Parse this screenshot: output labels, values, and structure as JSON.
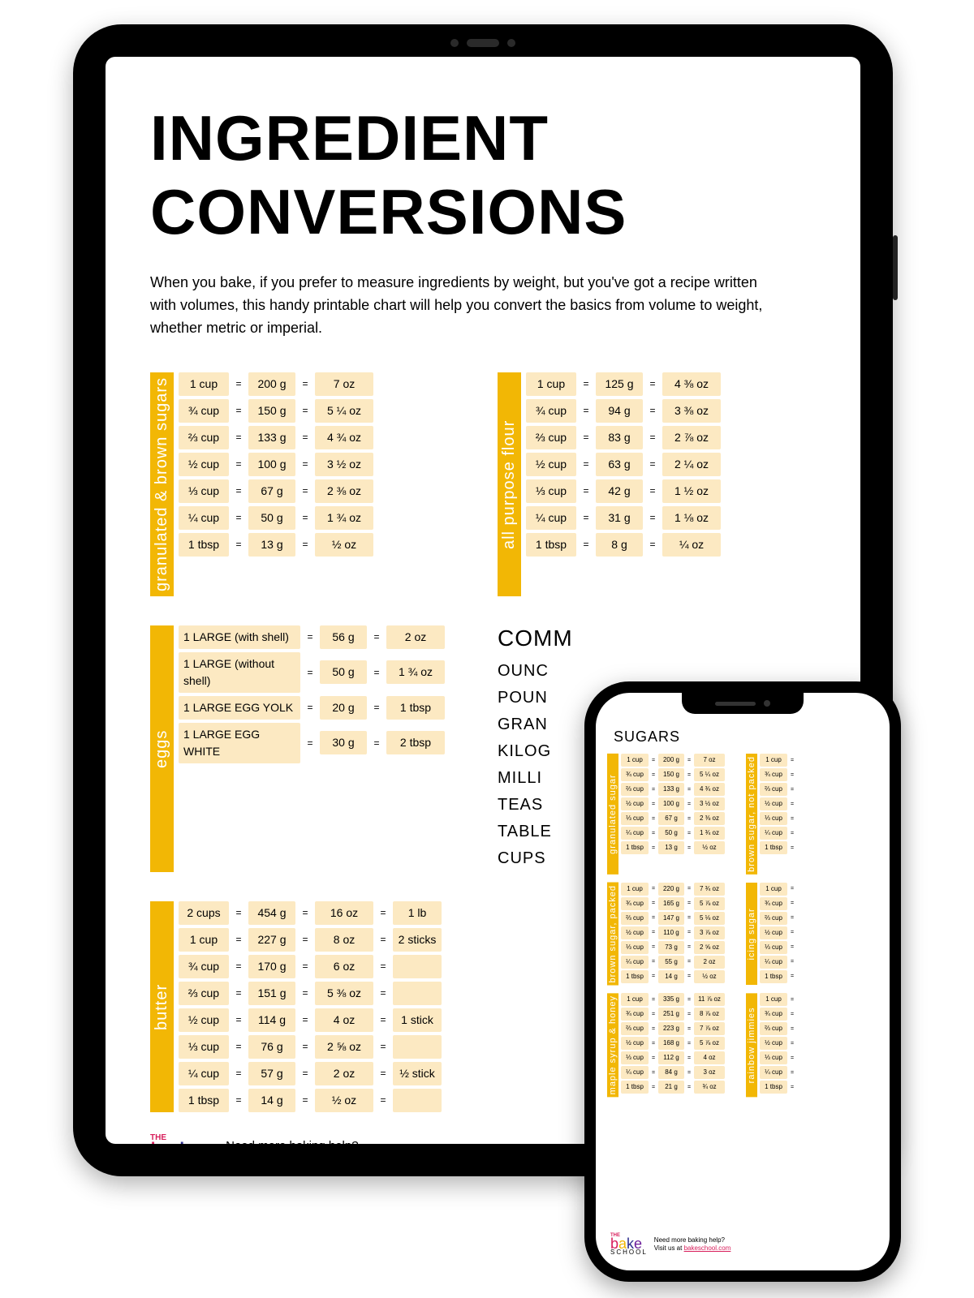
{
  "title": "INGREDIENT CONVERSIONS",
  "intro": "When you bake, if you prefer to measure ingredients by weight, but you've got a recipe written with volumes, this handy printable chart will help you convert the basics from volume to weight, whether metric or imperial.",
  "colors": {
    "accent": "#f2b705",
    "cell": "#fce9c2",
    "pink": "#d81e5b",
    "navy": "#2e2e8f",
    "purple": "#6a1b9a"
  },
  "tables": {
    "sugars": {
      "label": "granulated & brown sugars",
      "rows": [
        [
          "1 cup",
          "200 g",
          "7 oz"
        ],
        [
          "¾ cup",
          "150 g",
          "5 ¼ oz"
        ],
        [
          "⅔ cup",
          "133 g",
          "4 ¾ oz"
        ],
        [
          "½ cup",
          "100 g",
          "3 ½ oz"
        ],
        [
          "⅓ cup",
          "67 g",
          "2 ⅜ oz"
        ],
        [
          "¼ cup",
          "50 g",
          "1 ¾ oz"
        ],
        [
          "1 tbsp",
          "13 g",
          "½ oz"
        ]
      ]
    },
    "flour": {
      "label": "all purpose flour",
      "rows": [
        [
          "1 cup",
          "125 g",
          "4 ⅜ oz"
        ],
        [
          "¾ cup",
          "94 g",
          "3 ⅜ oz"
        ],
        [
          "⅔ cup",
          "83 g",
          "2 ⅞ oz"
        ],
        [
          "½ cup",
          "63 g",
          "2 ¼ oz"
        ],
        [
          "⅓ cup",
          "42 g",
          "1 ½ oz"
        ],
        [
          "¼ cup",
          "31 g",
          "1 ⅛ oz"
        ],
        [
          "1 tbsp",
          "8 g",
          "¼ oz"
        ]
      ]
    },
    "eggs": {
      "label": "eggs",
      "rows": [
        [
          "1 LARGE (with shell)",
          "56 g",
          "2 oz"
        ],
        [
          "1 LARGE (without shell)",
          "50 g",
          "1 ¾ oz"
        ],
        [
          "1 LARGE EGG YOLK",
          "20 g",
          "1 tbsp"
        ],
        [
          "1 LARGE EGG WHITE",
          "30 g",
          "2 tbsp"
        ]
      ]
    },
    "butter": {
      "label": "butter",
      "rows": [
        [
          "2 cups",
          "454 g",
          "16 oz",
          "1 lb"
        ],
        [
          "1 cup",
          "227 g",
          "8 oz",
          "2 sticks"
        ],
        [
          "¾ cup",
          "170 g",
          "6 oz",
          ""
        ],
        [
          "⅔ cup",
          "151 g",
          "5 ⅜ oz",
          ""
        ],
        [
          "½ cup",
          "114 g",
          "4 oz",
          "1 stick"
        ],
        [
          "⅓ cup",
          "76 g",
          "2 ⅝ oz",
          ""
        ],
        [
          "¼ cup",
          "57 g",
          "2 oz",
          "½ stick"
        ],
        [
          "1 tbsp",
          "14 g",
          "½ oz",
          ""
        ]
      ]
    }
  },
  "common": {
    "heading": "COMM",
    "items": [
      "OUNC",
      "POUN",
      "GRAN",
      "KILOG",
      "MILLI",
      "TEAS",
      "TABLE",
      "CUPS"
    ]
  },
  "footer": {
    "help": "Need more baking help?",
    "visit": "Visit us at ",
    "link": "bakeschool.com",
    "logo_b": "b",
    "logo_a": "a",
    "logo_k": "k",
    "logo_e": "e",
    "logo_sub": "SCHOOL",
    "logo_the": "THE"
  },
  "phone": {
    "title": "SUGARS",
    "blocks": {
      "gran": {
        "label": "granulated sugar",
        "rows": [
          [
            "1 cup",
            "200 g",
            "7 oz"
          ],
          [
            "¾ cup",
            "150 g",
            "5 ¼ oz"
          ],
          [
            "⅔ cup",
            "133 g",
            "4 ¾ oz"
          ],
          [
            "½ cup",
            "100 g",
            "3 ½ oz"
          ],
          [
            "⅓ cup",
            "67 g",
            "2 ⅜ oz"
          ],
          [
            "¼ cup",
            "50 g",
            "1 ¾ oz"
          ],
          [
            "1 tbsp",
            "13 g",
            "½ oz"
          ]
        ]
      },
      "brown_np": {
        "label": "brown sugar, not packed",
        "rows": [
          [
            "1 cup",
            "="
          ],
          [
            "¾ cup",
            "="
          ],
          [
            "⅔ cup",
            "="
          ],
          [
            "½ cup",
            "="
          ],
          [
            "⅓ cup",
            "="
          ],
          [
            "¼ cup",
            "="
          ],
          [
            "1 tbsp",
            "="
          ]
        ]
      },
      "brown_p": {
        "label": "brown sugar, packed",
        "rows": [
          [
            "1 cup",
            "220 g",
            "7 ¾ oz"
          ],
          [
            "¾ cup",
            "165 g",
            "5 ⅞ oz"
          ],
          [
            "⅔ cup",
            "147 g",
            "5 ⅛ oz"
          ],
          [
            "½ cup",
            "110 g",
            "3 ⅞ oz"
          ],
          [
            "⅓ cup",
            "73 g",
            "2 ⅝ oz"
          ],
          [
            "¼ cup",
            "55 g",
            "2 oz"
          ],
          [
            "1 tbsp",
            "14 g",
            "½ oz"
          ]
        ]
      },
      "icing": {
        "label": "icing sugar",
        "rows": [
          [
            "1 cup",
            "="
          ],
          [
            "¾ cup",
            "="
          ],
          [
            "⅔ cup",
            "="
          ],
          [
            "½ cup",
            "="
          ],
          [
            "⅓ cup",
            "="
          ],
          [
            "¼ cup",
            "="
          ],
          [
            "1 tbsp",
            "="
          ]
        ]
      },
      "maple": {
        "label": "maple syrup & honey",
        "rows": [
          [
            "1 cup",
            "335 g",
            "11 ⅞ oz"
          ],
          [
            "¾ cup",
            "251 g",
            "8 ⅞ oz"
          ],
          [
            "⅔ cup",
            "223 g",
            "7 ⅞ oz"
          ],
          [
            "½ cup",
            "168 g",
            "5 ⅞ oz"
          ],
          [
            "⅓ cup",
            "112 g",
            "4 oz"
          ],
          [
            "¼ cup",
            "84 g",
            "3 oz"
          ],
          [
            "1 tbsp",
            "21 g",
            "¾ oz"
          ]
        ]
      },
      "jimmies": {
        "label": "rainbow jimmies",
        "rows": [
          [
            "1 cup",
            "="
          ],
          [
            "¾ cup",
            "="
          ],
          [
            "⅔ cup",
            "="
          ],
          [
            "½ cup",
            "="
          ],
          [
            "⅓ cup",
            "="
          ],
          [
            "¼ cup",
            "="
          ],
          [
            "1 tbsp",
            "="
          ]
        ]
      }
    }
  }
}
